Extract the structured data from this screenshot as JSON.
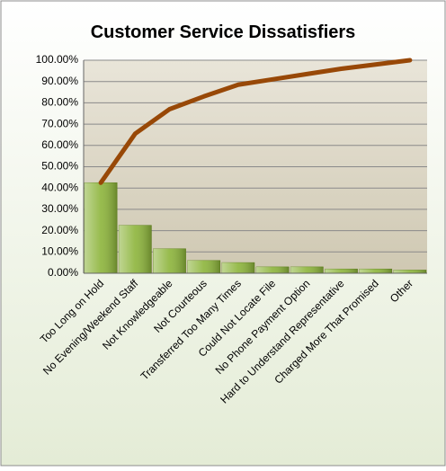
{
  "chart_data": {
    "type": "bar",
    "title": "Customer Service Dissatisfiers",
    "categories": [
      "Too Long on Hold",
      "No Evening/Weekend Staff",
      "Not Knowledgeable",
      "Not Courteous",
      "Transferred Too Many Times",
      "Could Not Locate File",
      "No Phone Payment Option",
      "Hard to Understand Representative",
      "Charged More That Promised",
      "Other"
    ],
    "series": [
      {
        "type": "bar",
        "color": "#8cb43a",
        "values": [
          42.5,
          22.5,
          11.5,
          6,
          5,
          3,
          3,
          2,
          2,
          1.5
        ]
      },
      {
        "type": "line",
        "color": "#984807",
        "values": [
          42.5,
          65.5,
          77,
          83,
          88.5,
          91,
          93.5,
          96,
          98,
          100
        ]
      }
    ],
    "ylim": [
      0,
      100
    ],
    "yticks": [
      {
        "value": 0,
        "label": "0.00%"
      },
      {
        "value": 10,
        "label": "10.00%"
      },
      {
        "value": 20,
        "label": "20.00%"
      },
      {
        "value": 30,
        "label": "30.00%"
      },
      {
        "value": 40,
        "label": "40.00%"
      },
      {
        "value": 50,
        "label": "50.00%"
      },
      {
        "value": 60,
        "label": "60.00%"
      },
      {
        "value": 70,
        "label": "70.00%"
      },
      {
        "value": 80,
        "label": "80.00%"
      },
      {
        "value": 90,
        "label": "90.00%"
      },
      {
        "value": 100,
        "label": "100.00%"
      }
    ],
    "grid": true
  }
}
